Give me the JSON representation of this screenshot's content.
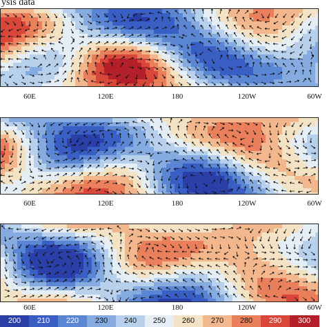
{
  "title": "ysis data",
  "longitude_labels": [
    "60E",
    "120E",
    "180",
    "120W",
    "60W"
  ],
  "colorbar": {
    "labels": [
      "200",
      "210",
      "220",
      "230",
      "240",
      "250",
      "260",
      "270",
      "280",
      "290",
      "300"
    ],
    "colors": [
      "#2b3fa8",
      "#3a5fc4",
      "#5b86d4",
      "#86abe0",
      "#b7d0ec",
      "#e6eef5",
      "#f3e2c4",
      "#f2b78d",
      "#ea7f5c",
      "#d8473a",
      "#b3202a"
    ]
  },
  "panels": [
    {
      "id": "top"
    },
    {
      "id": "middle"
    },
    {
      "id": "bottom"
    }
  ]
}
